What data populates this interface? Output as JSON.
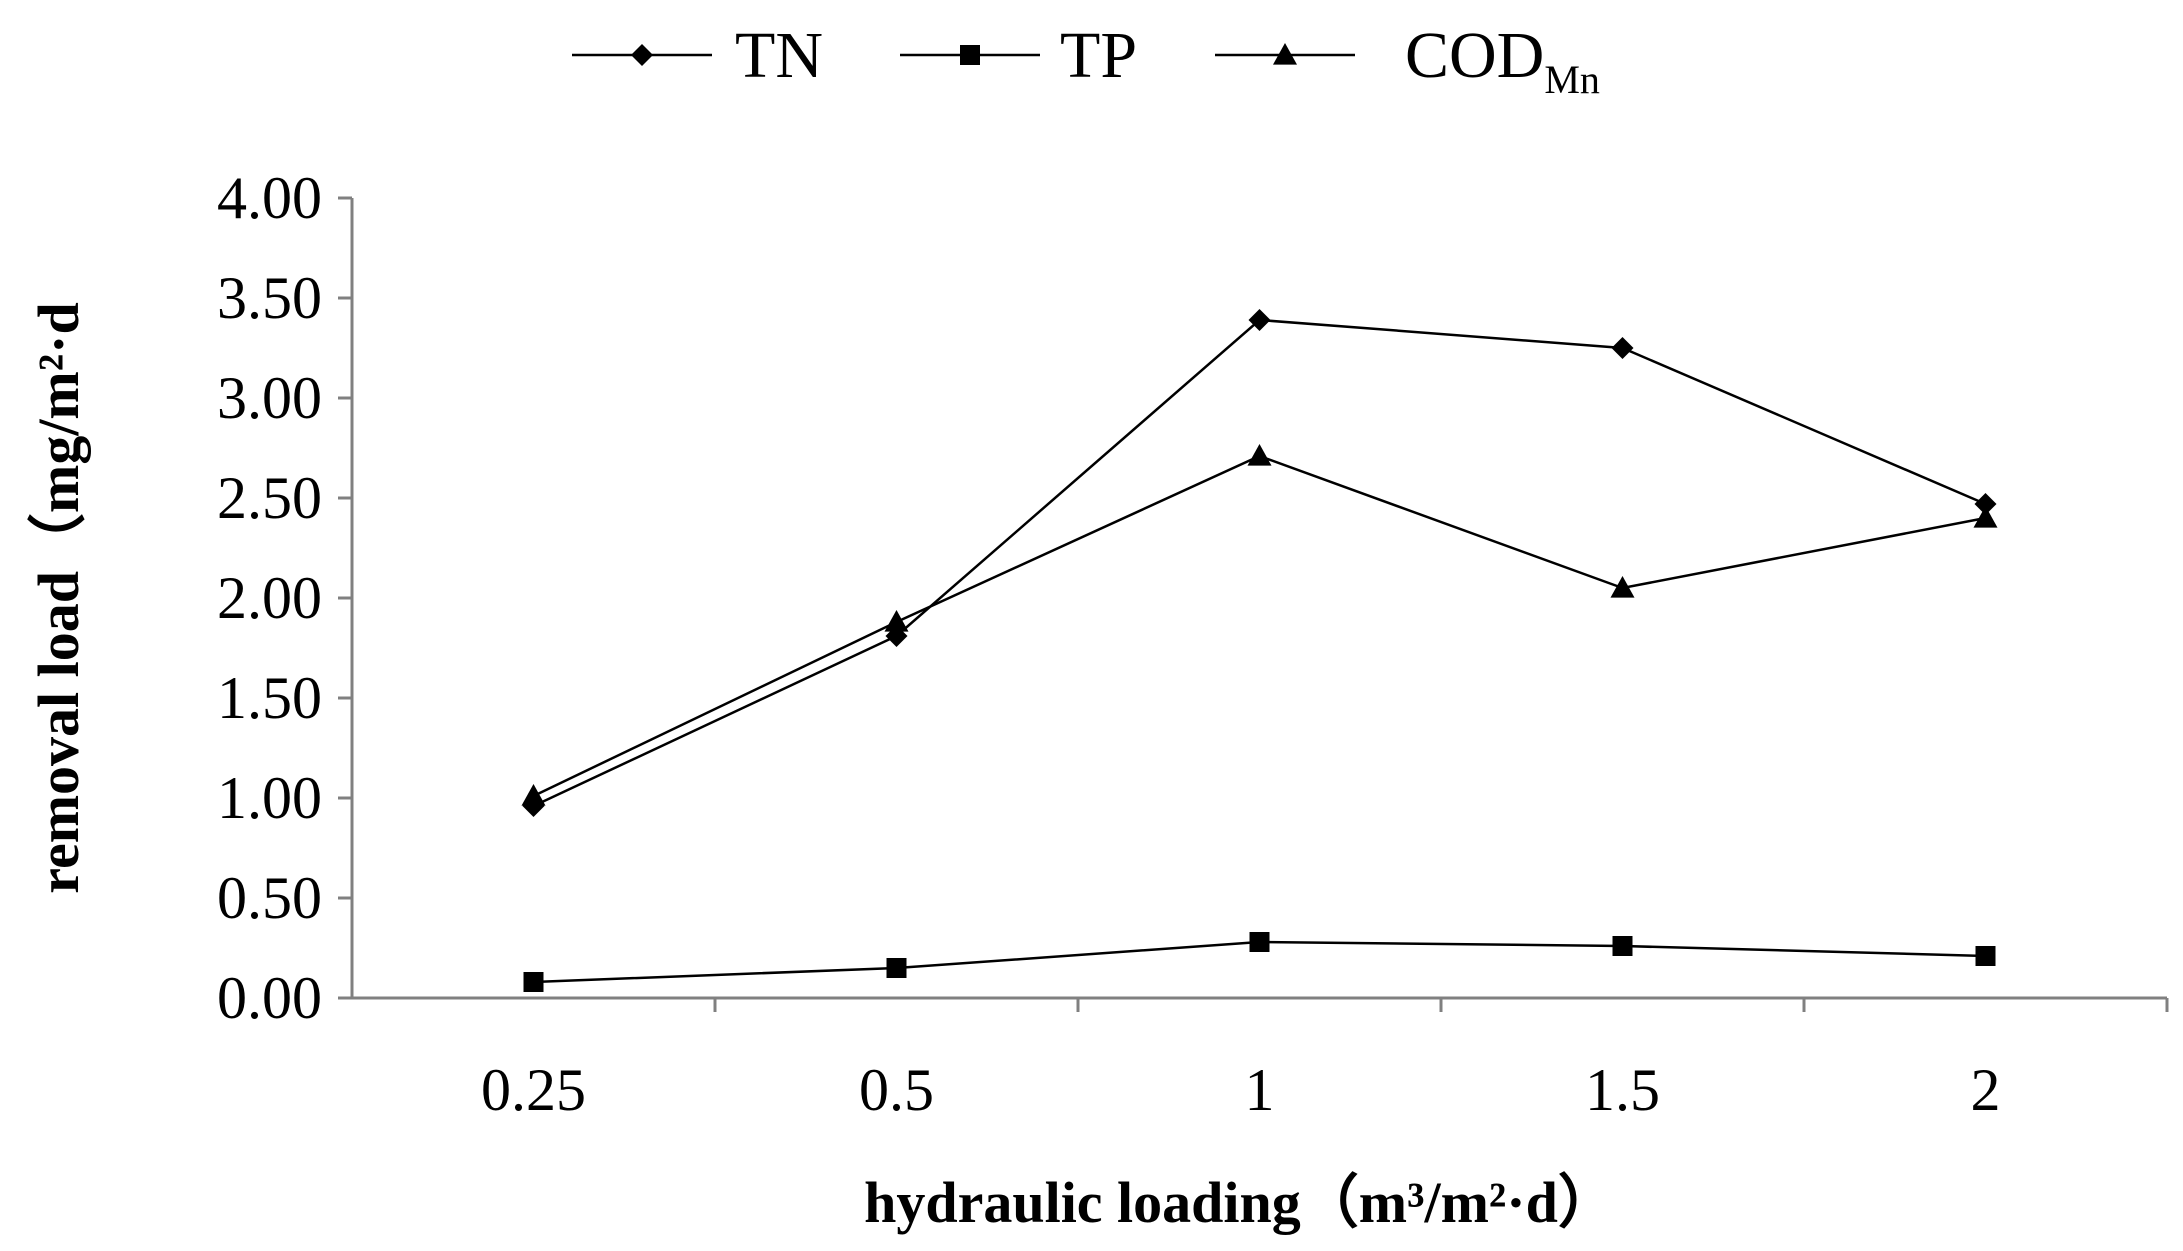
{
  "chart_data": {
    "type": "line",
    "categories": [
      "0.25",
      "0.5",
      "1",
      "1.5",
      "2"
    ],
    "series": [
      {
        "name": "TN",
        "marker": "diamond",
        "values": [
          0.96,
          1.81,
          3.39,
          3.25,
          2.47
        ]
      },
      {
        "name": "TP",
        "marker": "square",
        "values": [
          0.08,
          0.15,
          0.28,
          0.26,
          0.21
        ]
      },
      {
        "name": "COD",
        "name_subscript": "Mn",
        "marker": "triangle",
        "values": [
          1.01,
          1.88,
          2.71,
          2.05,
          2.4
        ]
      }
    ],
    "yticks": [
      "0.00",
      "0.50",
      "1.00",
      "1.50",
      "2.00",
      "2.50",
      "3.00",
      "3.50",
      "4.00"
    ],
    "ylim": [
      0,
      4
    ],
    "ylabel": "removal load（mg/m²·d",
    "xlabel": "hydraulic loading（m³/m²·d）",
    "legend_position": "top",
    "grid": false,
    "line_color": "#000000",
    "axis_color": "#808080"
  }
}
